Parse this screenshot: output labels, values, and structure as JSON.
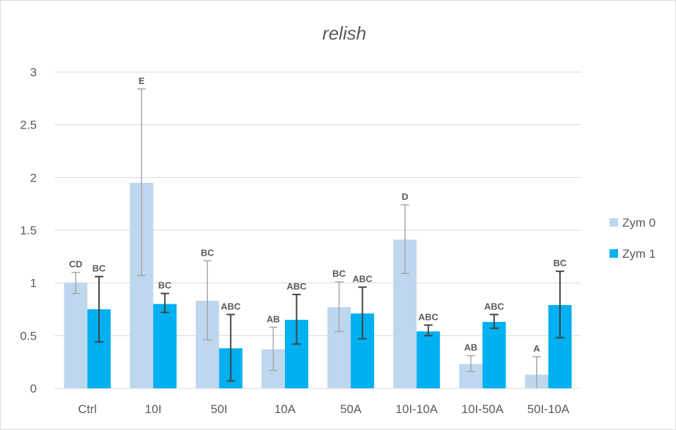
{
  "chart_data": {
    "type": "bar",
    "title": "relish",
    "xlabel": "",
    "ylabel": "",
    "ylim": [
      0,
      3
    ],
    "yticks": [
      "0",
      "0.5",
      "1",
      "1.5",
      "2",
      "2.5",
      "3"
    ],
    "categories": [
      "Ctrl",
      "10I",
      "50I",
      "10A",
      "50A",
      "10I-10A",
      "10I-50A",
      "50I-10A"
    ],
    "grid": true,
    "legend_position": "right",
    "series": [
      {
        "name": "Zym 0",
        "color": "#bdd7ee",
        "values": [
          1.0,
          1.95,
          0.83,
          0.37,
          0.77,
          1.41,
          0.23,
          0.13
        ],
        "err_low": [
          0.9,
          1.07,
          0.46,
          0.17,
          0.54,
          1.09,
          0.16,
          -0.04
        ],
        "err_high": [
          1.1,
          2.84,
          1.21,
          0.58,
          1.01,
          1.74,
          0.31,
          0.3
        ],
        "labels": [
          "CD",
          "E",
          "BC",
          "AB",
          "BC",
          "D",
          "AB",
          "A"
        ]
      },
      {
        "name": "Zym 1",
        "color": "#00b0f0",
        "values": [
          0.75,
          0.8,
          0.38,
          0.65,
          0.71,
          0.54,
          0.63,
          0.79
        ],
        "err_low": [
          0.44,
          0.72,
          0.07,
          0.42,
          0.47,
          0.5,
          0.57,
          0.48
        ],
        "err_high": [
          1.06,
          0.9,
          0.7,
          0.89,
          0.96,
          0.6,
          0.7,
          1.11
        ],
        "labels": [
          "BC",
          "BC",
          "ABC",
          "ABC",
          "ABC",
          "ABC",
          "ABC",
          "BC"
        ]
      }
    ]
  }
}
